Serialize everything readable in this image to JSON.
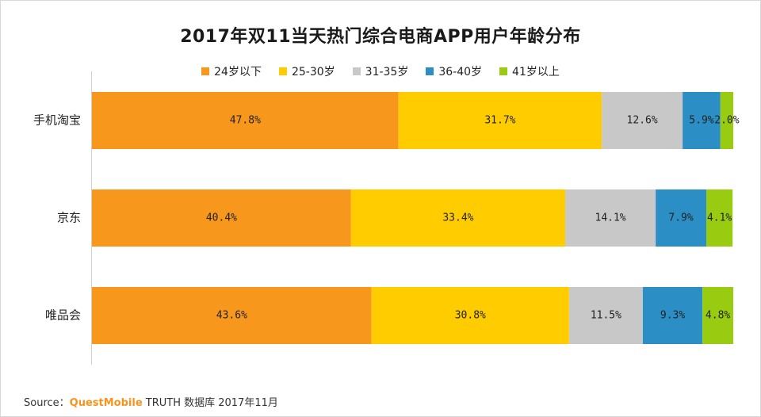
{
  "chart_data": {
    "type": "bar",
    "orientation": "horizontal",
    "stacked": true,
    "percent": true,
    "title": "2017年双11当天热门综合电商APP用户年龄分布",
    "categories": [
      "手机淘宝",
      "京东",
      "唯品会"
    ],
    "series": [
      {
        "name": "24岁以下",
        "color": "#f7981d",
        "values": [
          47.8,
          40.4,
          43.6
        ],
        "labels": [
          "47.8%",
          "40.4%",
          "43.6%"
        ]
      },
      {
        "name": "25-30岁",
        "color": "#ffcc00",
        "values": [
          31.7,
          33.4,
          30.8
        ],
        "labels": [
          "31.7%",
          "33.4%",
          "30.8%"
        ]
      },
      {
        "name": "31-35岁",
        "color": "#c8c8c8",
        "values": [
          12.6,
          14.1,
          11.5
        ],
        "labels": [
          "12.6%",
          "14.1%",
          "11.5%"
        ]
      },
      {
        "name": "36-40岁",
        "color": "#2b8fc5",
        "values": [
          5.9,
          7.9,
          9.3
        ],
        "labels": [
          "5.9%",
          "7.9%",
          "9.3%"
        ]
      },
      {
        "name": "41岁以上",
        "color": "#99cc11",
        "values": [
          2.0,
          4.1,
          4.8
        ],
        "labels": [
          "2.0%",
          "4.1%",
          "4.8%"
        ]
      }
    ],
    "legend": "top-center",
    "xlim": [
      0,
      100
    ],
    "grid": false
  },
  "source": {
    "prefix": "Source：",
    "brand": "QuestMobile",
    "suffix": " TRUTH 数据库 2017年11月"
  }
}
